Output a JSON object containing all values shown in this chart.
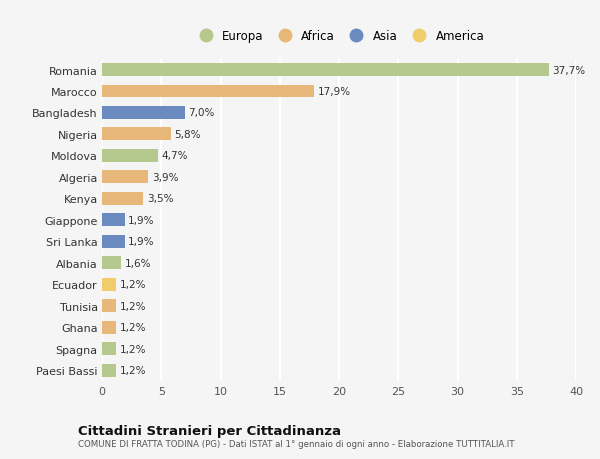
{
  "countries": [
    "Romania",
    "Marocco",
    "Bangladesh",
    "Nigeria",
    "Moldova",
    "Algeria",
    "Kenya",
    "Giappone",
    "Sri Lanka",
    "Albania",
    "Ecuador",
    "Tunisia",
    "Ghana",
    "Spagna",
    "Paesi Bassi"
  ],
  "values": [
    37.7,
    17.9,
    7.0,
    5.8,
    4.7,
    3.9,
    3.5,
    1.9,
    1.9,
    1.6,
    1.2,
    1.2,
    1.2,
    1.2,
    1.2
  ],
  "labels": [
    "37,7%",
    "17,9%",
    "7,0%",
    "5,8%",
    "4,7%",
    "3,9%",
    "3,5%",
    "1,9%",
    "1,9%",
    "1,6%",
    "1,2%",
    "1,2%",
    "1,2%",
    "1,2%",
    "1,2%"
  ],
  "continents": [
    "Europa",
    "Africa",
    "Asia",
    "Africa",
    "Europa",
    "Africa",
    "Africa",
    "Asia",
    "Asia",
    "Europa",
    "America",
    "Africa",
    "Africa",
    "Europa",
    "Europa"
  ],
  "continent_colors": {
    "Europa": "#b5c98e",
    "Africa": "#e8b87a",
    "Asia": "#6b8abf",
    "America": "#f0cc6b"
  },
  "legend_order": [
    "Europa",
    "Africa",
    "Asia",
    "America"
  ],
  "xlim": [
    0,
    40
  ],
  "xticks": [
    0,
    5,
    10,
    15,
    20,
    25,
    30,
    35,
    40
  ],
  "title": "Cittadini Stranieri per Cittadinanza",
  "subtitle": "COMUNE DI FRATTA TODINA (PG) - Dati ISTAT al 1° gennaio di ogni anno - Elaborazione TUTTITALIA.IT",
  "background_color": "#f5f5f5",
  "bar_height": 0.6
}
